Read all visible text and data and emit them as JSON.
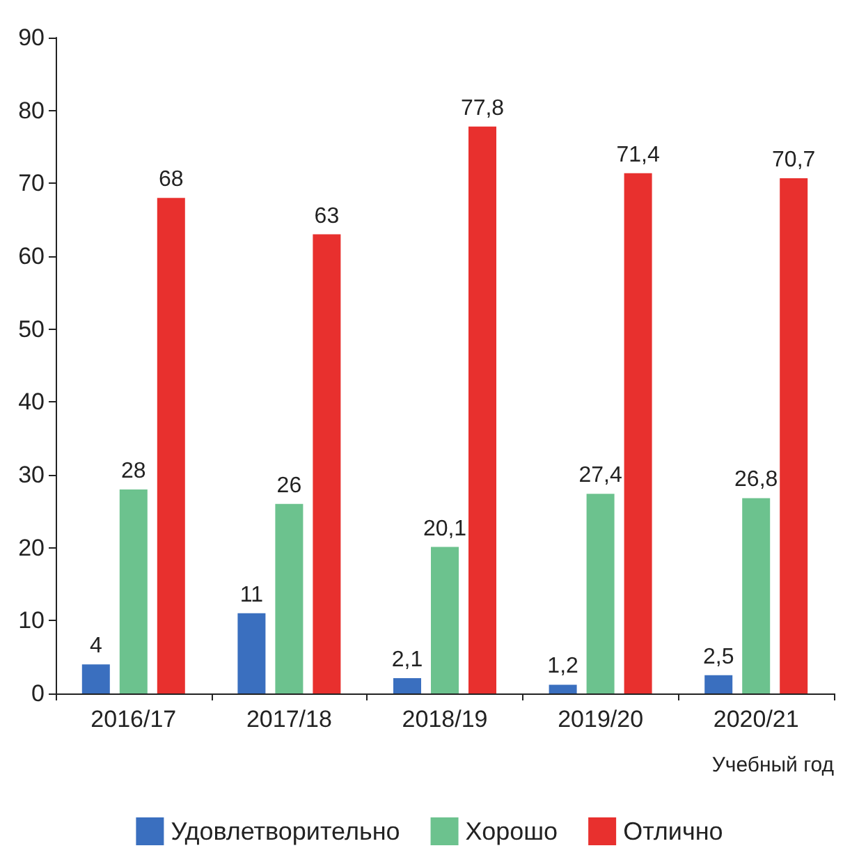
{
  "chart_data": {
    "type": "bar",
    "xlabel": "Учебный год",
    "categories": [
      "2016/17",
      "2017/18",
      "2018/19",
      "2019/20",
      "2020/21"
    ],
    "series": [
      {
        "name": "Удовлетворительно",
        "color": "#3a6fbf",
        "values": [
          4,
          11,
          2.1,
          1.2,
          2.5
        ],
        "value_labels": [
          "4",
          "11",
          "2,1",
          "1,2",
          "2,5"
        ]
      },
      {
        "name": "Хорошо",
        "color": "#6cc28e",
        "values": [
          28,
          26,
          20.1,
          27.4,
          26.8
        ],
        "value_labels": [
          "28",
          "26",
          "20,1",
          "27,4",
          "26,8"
        ]
      },
      {
        "name": "Отлично",
        "color": "#e8302e",
        "values": [
          68,
          63,
          77.8,
          71.4,
          70.7
        ],
        "value_labels": [
          "68",
          "63",
          "77,8",
          "71,4",
          "70,7"
        ]
      }
    ],
    "ylim": [
      0,
      90
    ],
    "yticks": [
      0,
      10,
      20,
      30,
      40,
      50,
      60,
      70,
      80,
      90
    ],
    "grid": false,
    "legend": "bottom"
  }
}
